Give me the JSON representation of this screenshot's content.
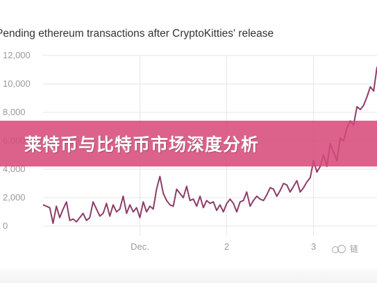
{
  "page": {
    "banner_text": "莱特币与比特币市场深度分析",
    "watermark": "链"
  },
  "colors": {
    "line": "#8e3b68",
    "grid": "#e6e6e6",
    "banner": "#d64878",
    "tick": "#9a9a9a"
  },
  "chart_data": {
    "type": "line",
    "title": "Pending ethereum transactions after CryptoKitties' release",
    "xlabel": "",
    "ylabel": "",
    "ylim": [
      0,
      12000
    ],
    "yticks": [
      0,
      2000,
      4000,
      6000,
      8000,
      10000,
      12000
    ],
    "ytick_labels": [
      "0",
      "2,000",
      "4,000",
      "6,000",
      "8,000",
      "10,000",
      "12,000"
    ],
    "xlim": [
      0,
      100
    ],
    "xticks": [
      29,
      55,
      81
    ],
    "xtick_labels": [
      "Dec.",
      "2",
      "3"
    ],
    "grid": true,
    "series": [
      {
        "name": "",
        "x": [
          0,
          1,
          2,
          3,
          4,
          5,
          6,
          7,
          8,
          9,
          10,
          11,
          12,
          13,
          14,
          15,
          16,
          17,
          18,
          19,
          20,
          21,
          22,
          23,
          24,
          25,
          26,
          27,
          28,
          29,
          30,
          31,
          32,
          33,
          34,
          35,
          36,
          37,
          38,
          39,
          40,
          41,
          42,
          43,
          44,
          45,
          46,
          47,
          48,
          49,
          50,
          51,
          52,
          53,
          54,
          55,
          56,
          57,
          58,
          59,
          60,
          61,
          62,
          63,
          64,
          65,
          66,
          67,
          68,
          69,
          70,
          71,
          72,
          73,
          74,
          75,
          76,
          77,
          78,
          79,
          80,
          81,
          82,
          83,
          84,
          85,
          86,
          87,
          88,
          89,
          90,
          91,
          92,
          93,
          94,
          95,
          96,
          97,
          98,
          99,
          100
        ],
        "values": [
          1500,
          1400,
          1300,
          200,
          1400,
          600,
          1200,
          1700,
          400,
          500,
          300,
          600,
          900,
          400,
          600,
          1700,
          1200,
          700,
          900,
          1600,
          700,
          1500,
          1000,
          1200,
          2100,
          900,
          1500,
          1000,
          1300,
          600,
          1700,
          1000,
          1400,
          1200,
          2600,
          3500,
          2300,
          1800,
          1500,
          1400,
          2600,
          2300,
          2000,
          2800,
          1800,
          1900,
          1400,
          2100,
          1300,
          1800,
          1600,
          1700,
          1100,
          1500,
          1000,
          1600,
          1900,
          1600,
          1000,
          1700,
          1800,
          2400,
          1400,
          1800,
          2100,
          1900,
          1800,
          2200,
          2700,
          2600,
          2100,
          2500,
          3000,
          2900,
          2400,
          2800,
          3200,
          2400,
          2700,
          3100,
          3400,
          4600,
          3800,
          4200,
          5000,
          4200,
          5800,
          5200,
          4600,
          6200,
          6000,
          6900,
          7400,
          7100,
          8400,
          8200,
          8500,
          9100,
          9800,
          9500,
          11200
        ]
      }
    ]
  }
}
